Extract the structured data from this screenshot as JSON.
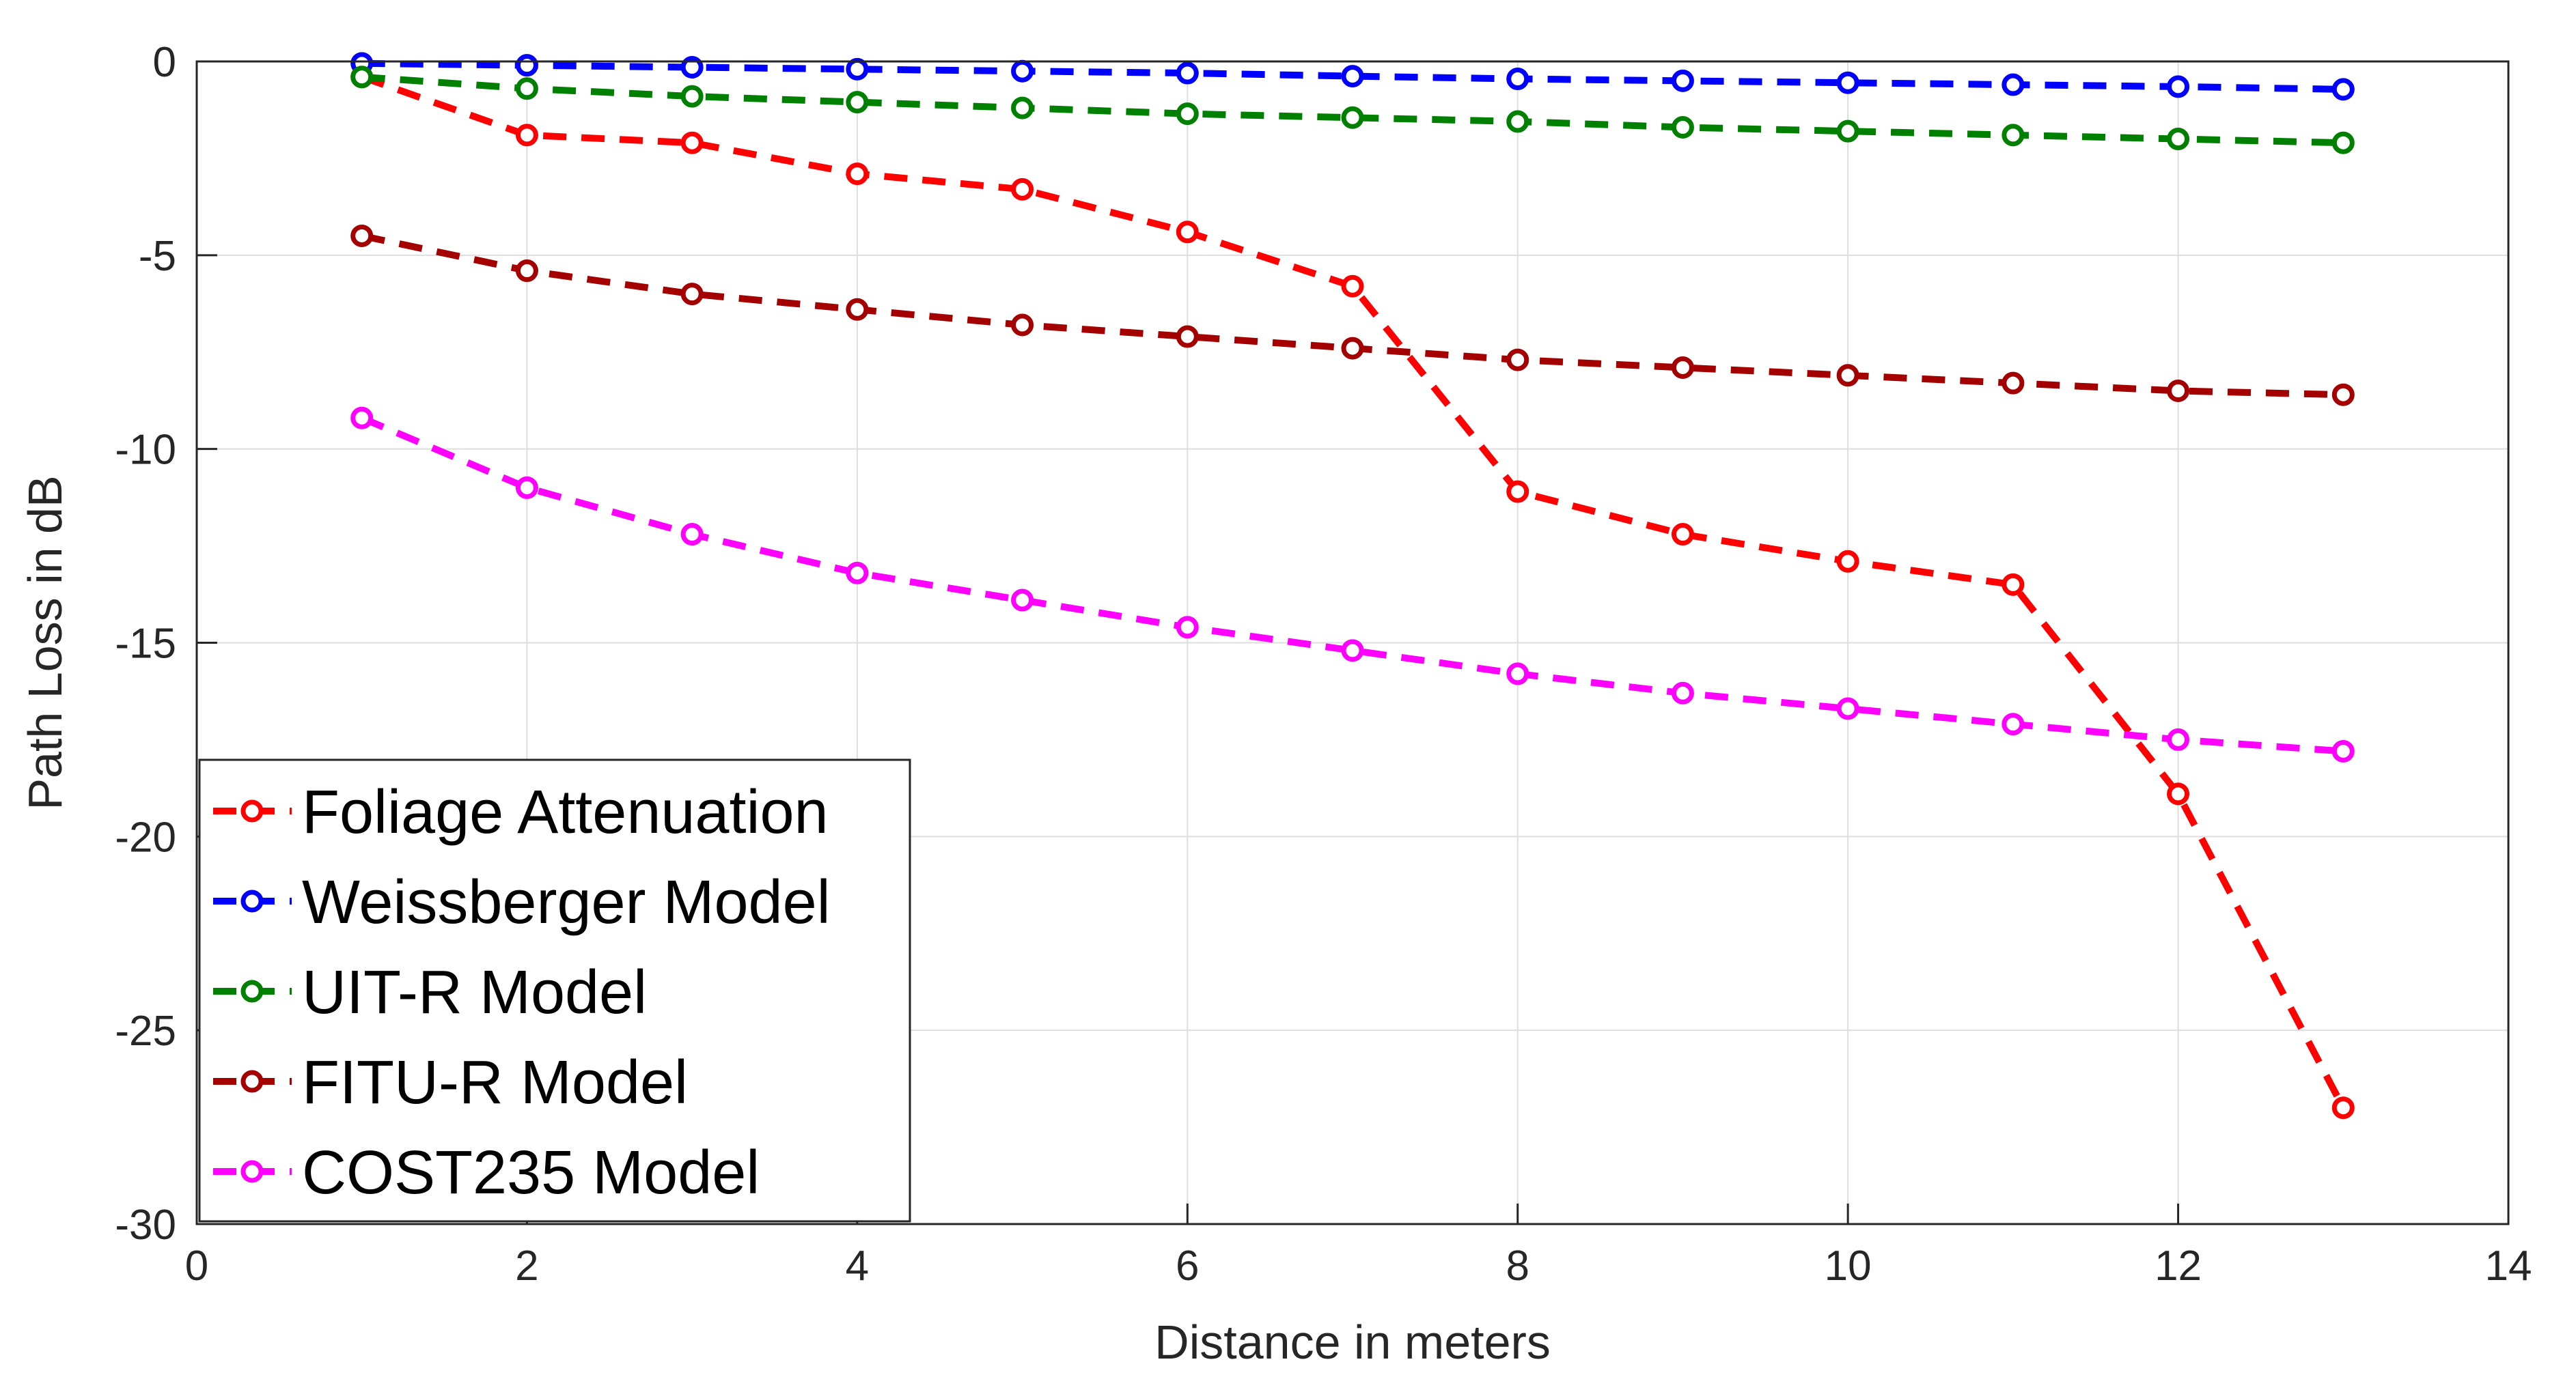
{
  "chart_data": {
    "type": "line",
    "title": "",
    "xlabel": "Distance in meters",
    "ylabel": "Path Loss in dB",
    "xlim": [
      0,
      14
    ],
    "ylim": [
      -30,
      0
    ],
    "xticks": [
      0,
      2,
      4,
      6,
      8,
      10,
      12,
      14
    ],
    "yticks": [
      0,
      -5,
      -10,
      -15,
      -20,
      -25,
      -30
    ],
    "xtick_labels": [
      "0",
      "2",
      "4",
      "6",
      "8",
      "10",
      "12",
      "14"
    ],
    "ytick_labels": [
      "0",
      "-5",
      "-10",
      "-15",
      "-20",
      "-25",
      "-30"
    ],
    "grid": true,
    "legend_position": "bottom-left",
    "line_style": "dashed",
    "marker": "circle",
    "x": [
      1,
      2,
      3,
      4,
      5,
      6,
      7,
      8,
      9,
      10,
      11,
      12,
      13
    ],
    "series": [
      {
        "name": "Foliage Attenuation",
        "color": "#ff0000",
        "values": [
          -0.4,
          -1.9,
          -2.1,
          -2.9,
          -3.3,
          -4.4,
          -5.8,
          -11.1,
          -12.2,
          -12.9,
          -13.5,
          -18.9,
          -27.0
        ]
      },
      {
        "name": "Weissberger Model",
        "color": "#0000ff",
        "values": [
          -0.05,
          -0.1,
          -0.15,
          -0.2,
          -0.25,
          -0.3,
          -0.38,
          -0.45,
          -0.5,
          -0.55,
          -0.6,
          -0.65,
          -0.72
        ]
      },
      {
        "name": "UIT-R Model",
        "color": "#008000",
        "values": [
          -0.4,
          -0.7,
          -0.9,
          -1.05,
          -1.2,
          -1.35,
          -1.45,
          -1.55,
          -1.7,
          -1.8,
          -1.9,
          -2.0,
          -2.1
        ]
      },
      {
        "name": "FITU-R Model",
        "color": "#a50000",
        "values": [
          -4.5,
          -5.4,
          -6.0,
          -6.4,
          -6.8,
          -7.1,
          -7.4,
          -7.7,
          -7.9,
          -8.1,
          -8.3,
          -8.5,
          -8.6
        ]
      },
      {
        "name": "COST235 Model",
        "color": "#ff00ff",
        "values": [
          -9.2,
          -11.0,
          -12.2,
          -13.2,
          -13.9,
          -14.6,
          -15.2,
          -15.8,
          -16.3,
          -16.7,
          -17.1,
          -17.5,
          -17.8
        ]
      }
    ]
  }
}
